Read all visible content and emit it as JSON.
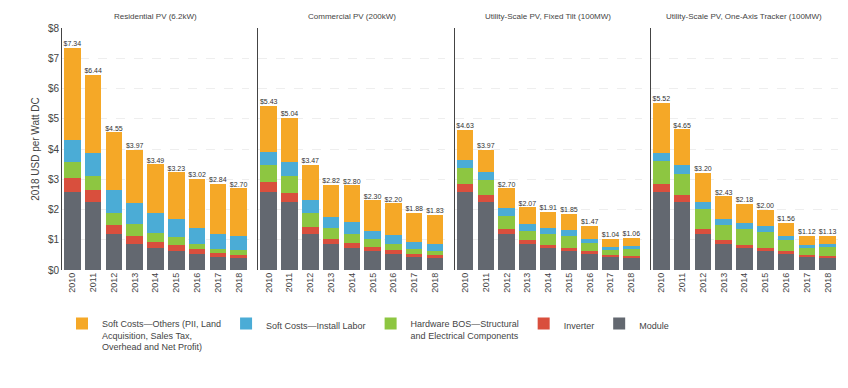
{
  "chart_data": [
    {
      "type": "bar",
      "stacked": true,
      "title": "Residential PV (6.2kW)",
      "categories": [
        "2010",
        "2011",
        "2012",
        "2013",
        "2014",
        "2015",
        "2016",
        "2017",
        "2018"
      ],
      "series": [
        {
          "name": "Module",
          "color": "#636870",
          "values": [
            2.59,
            2.25,
            1.2,
            0.85,
            0.72,
            0.64,
            0.54,
            0.43,
            0.41
          ]
        },
        {
          "name": "Inverter",
          "color": "#D94F3D",
          "values": [
            0.46,
            0.38,
            0.28,
            0.28,
            0.21,
            0.2,
            0.14,
            0.12,
            0.1
          ]
        },
        {
          "name": "Hardware BOS—Structural\nand Electrical Components",
          "color": "#8DC641",
          "values": [
            0.53,
            0.47,
            0.42,
            0.38,
            0.29,
            0.24,
            0.18,
            0.16,
            0.15
          ]
        },
        {
          "name": "Soft Costs—Install Labor",
          "color": "#4BACD6",
          "values": [
            0.71,
            0.77,
            0.74,
            0.71,
            0.66,
            0.6,
            0.54,
            0.49,
            0.46
          ]
        },
        {
          "name": "Soft Costs—Others (PII, Land\nAcquisition, Sales Tax,\nOverhead and Net Profit)",
          "color": "#F5A827",
          "values": [
            3.05,
            2.57,
            1.91,
            1.75,
            1.61,
            1.55,
            1.62,
            1.64,
            1.58
          ]
        }
      ],
      "totals": [
        7.34,
        6.44,
        4.55,
        3.97,
        3.49,
        3.23,
        3.02,
        2.84,
        2.7
      ],
      "total_labels": [
        "$7.34",
        "$6.44",
        "$4.55",
        "$3.97",
        "$3.49",
        "$3.23",
        "$3.02",
        "$2.84",
        "$2.70"
      ],
      "ylabel": "2018 USD per Watt DC",
      "ylim": [
        0,
        8.0
      ],
      "yticks": [
        {
          "value": 0,
          "label": "$0"
        },
        {
          "value": 1,
          "label": "$1"
        },
        {
          "value": 2,
          "label": "$2"
        },
        {
          "value": 3,
          "label": "$3"
        },
        {
          "value": 4,
          "label": "$4"
        },
        {
          "value": 5,
          "label": "$5"
        },
        {
          "value": 6,
          "label": "$6"
        },
        {
          "value": 7,
          "label": "$7"
        },
        {
          "value": 8,
          "label": "$8"
        }
      ],
      "grid": true,
      "legend": "lower left"
    },
    {
      "type": "bar",
      "stacked": true,
      "title": "Commercial PV (200kW)",
      "categories": [
        "2010",
        "2011",
        "2012",
        "2013",
        "2014",
        "2015",
        "2016",
        "2017",
        "2018"
      ],
      "series": [
        {
          "name": "Module",
          "color": "#636870",
          "values": [
            2.59,
            2.25,
            1.2,
            0.85,
            0.72,
            0.64,
            0.54,
            0.43,
            0.41
          ]
        },
        {
          "name": "Inverter",
          "color": "#D94F3D",
          "values": [
            0.33,
            0.28,
            0.22,
            0.19,
            0.16,
            0.13,
            0.11,
            0.09,
            0.08
          ]
        },
        {
          "name": "Hardware BOS—Structural\nand Electrical Components",
          "color": "#8DC641",
          "values": [
            0.55,
            0.57,
            0.46,
            0.34,
            0.32,
            0.25,
            0.21,
            0.17,
            0.15
          ]
        },
        {
          "name": "Soft Costs—Install Labor",
          "color": "#4BACD6",
          "values": [
            0.44,
            0.47,
            0.45,
            0.37,
            0.4,
            0.28,
            0.29,
            0.24,
            0.22
          ]
        },
        {
          "name": "Soft Costs—Others (PII, Land\nAcquisition, Sales Tax,\nOverhead and Net Profit)",
          "color": "#F5A827",
          "values": [
            1.52,
            1.47,
            1.14,
            1.07,
            1.2,
            1.0,
            1.05,
            0.95,
            0.97
          ]
        }
      ],
      "totals": [
        5.43,
        5.04,
        3.47,
        2.82,
        2.8,
        2.3,
        2.2,
        1.88,
        1.83
      ],
      "total_labels": [
        "$5.43",
        "$5.04",
        "$3.47",
        "$2.82",
        "$2.80",
        "$2.30",
        "$2.20",
        "$1.88",
        "$1.83"
      ],
      "ylim": [
        0,
        8.0
      ],
      "yticks": [
        0,
        1,
        2,
        3,
        4,
        5,
        6,
        7,
        8
      ],
      "tick_labels": "x",
      "grid": true
    },
    {
      "type": "bar",
      "stacked": true,
      "title": "Utility-Scale PV, Fixed Tilt (100MW)",
      "categories": [
        "2010",
        "2011",
        "2012",
        "2013",
        "2014",
        "2015",
        "2016",
        "2017",
        "2018"
      ],
      "series": [
        {
          "name": "Module",
          "color": "#636870",
          "values": [
            2.59,
            2.25,
            1.2,
            0.85,
            0.72,
            0.64,
            0.54,
            0.43,
            0.41
          ]
        },
        {
          "name": "Inverter",
          "color": "#D94F3D",
          "values": [
            0.25,
            0.22,
            0.17,
            0.13,
            0.11,
            0.1,
            0.08,
            0.06,
            0.05
          ]
        },
        {
          "name": "Hardware BOS—Structural\nand Electrical Components",
          "color": "#8DC641",
          "values": [
            0.54,
            0.5,
            0.42,
            0.32,
            0.37,
            0.4,
            0.27,
            0.18,
            0.22
          ]
        },
        {
          "name": "Soft Costs—Install Labor",
          "color": "#4BACD6",
          "values": [
            0.27,
            0.28,
            0.25,
            0.21,
            0.2,
            0.18,
            0.14,
            0.1,
            0.12
          ]
        },
        {
          "name": "Soft Costs—Others (PII, Land\nAcquisition, Sales Tax,\nOverhead and Net Profit)",
          "color": "#F5A827",
          "values": [
            0.98,
            0.72,
            0.66,
            0.56,
            0.51,
            0.53,
            0.44,
            0.27,
            0.26
          ]
        }
      ],
      "totals": [
        4.63,
        3.97,
        2.7,
        2.07,
        1.91,
        1.85,
        1.47,
        1.04,
        1.06
      ],
      "total_labels": [
        "$4.63",
        "$3.97",
        "$2.70",
        "$2.07",
        "$1.91",
        "$1.85",
        "$1.47",
        "$1.04",
        "$1.06"
      ],
      "ylim": [
        0,
        8.0
      ],
      "yticks": [
        0,
        1,
        2,
        3,
        4,
        5,
        6,
        7,
        8
      ],
      "tick_labels": "x",
      "grid": true
    },
    {
      "type": "bar",
      "stacked": true,
      "title": "Utility-Scale PV, One-Axis Tracker (100MW)",
      "categories": [
        "2010",
        "2011",
        "2012",
        "2013",
        "2014",
        "2015",
        "2016",
        "2017",
        "2018"
      ],
      "series": [
        {
          "name": "Module",
          "color": "#636870",
          "values": [
            2.59,
            2.25,
            1.2,
            0.85,
            0.72,
            0.64,
            0.54,
            0.43,
            0.41
          ]
        },
        {
          "name": "Inverter",
          "color": "#D94F3D",
          "values": [
            0.25,
            0.22,
            0.17,
            0.13,
            0.11,
            0.1,
            0.08,
            0.06,
            0.05
          ]
        },
        {
          "name": "Hardware BOS—Structural\nand Electrical Components",
          "color": "#8DC641",
          "values": [
            0.76,
            0.72,
            0.64,
            0.51,
            0.52,
            0.53,
            0.38,
            0.25,
            0.29
          ]
        },
        {
          "name": "Soft Costs—Install Labor",
          "color": "#4BACD6",
          "values": [
            0.27,
            0.28,
            0.25,
            0.21,
            0.2,
            0.18,
            0.14,
            0.1,
            0.12
          ]
        },
        {
          "name": "Soft Costs—Others (PII, Land\nAcquisition, Sales Tax,\nOverhead and Net Profit)",
          "color": "#F5A827",
          "values": [
            1.65,
            1.18,
            0.94,
            0.73,
            0.63,
            0.55,
            0.42,
            0.28,
            0.26
          ]
        }
      ],
      "totals": [
        5.52,
        4.65,
        3.2,
        2.43,
        2.18,
        2.0,
        1.56,
        1.12,
        1.13
      ],
      "total_labels": [
        "$5.52",
        "$4.65",
        "$3.20",
        "$2.43",
        "$2.18",
        "$2.00",
        "$1.56",
        "$1.12",
        "$1.13"
      ],
      "ylim": [
        0,
        8.0
      ],
      "yticks": [
        0,
        1,
        2,
        3,
        4,
        5,
        6,
        7,
        8
      ],
      "tick_labels": "x",
      "grid": true
    }
  ]
}
